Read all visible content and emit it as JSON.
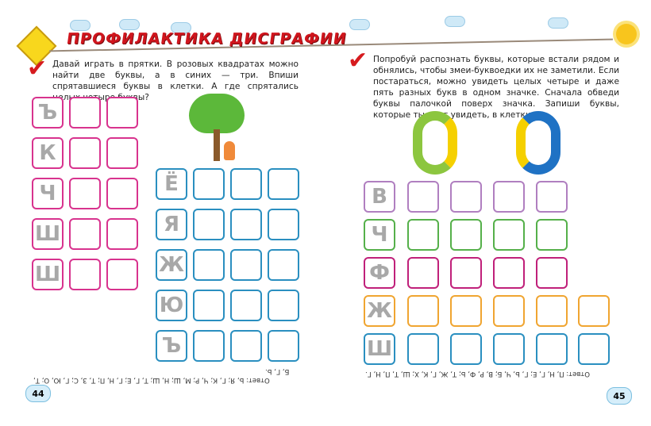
{
  "header": {
    "title": "ПРОФИЛАКТИКА ДИСГРАФИИ"
  },
  "left_page": {
    "task": "Давай играть в прятки. В розовых квадратах можно найти две буквы, а в синих — три. Впиши спрятавшиеся буквы в клетки. А где спрятались целых четыре буквы?",
    "pink_glyphs": [
      "Ъ",
      "К",
      "Ч",
      "Ш",
      "Ш"
    ],
    "blue_glyphs": [
      "Ё",
      "Я",
      "Ж",
      "Ю",
      "Ъ"
    ],
    "answer": "Ответ: Ь, Я; Г, К; Ч, Р; М, Ш; Н, Ш; Т, Г, Е; Г, Н, П; Т, З, С; Г, Ю, О; Т,",
    "answer_line2": "Б, Г, Ь.",
    "page_number": "44"
  },
  "right_page": {
    "task": "Попробуй распознать буквы, которые встали рядом и обнялись, чтобы змеи-буквоедки их не заметили. Если постараться, можно увидеть целых четыре и даже пять разных букв в одном значке. Сначала обведи буквы палочкой поверх значка. Запиши буквы, которые ты смог увидеть, в клетки.",
    "glyphs": [
      "В",
      "Ч",
      "Ф",
      "Ж",
      "Ш"
    ],
    "answer": "Ответ: П, Н, Г, Е; Г, Ь, Ч, Б; В, Р, Ф, Ь; Т, Ж, Г, К, Х; Ш, Т, П, Н, Г.",
    "page_number": "45"
  },
  "colors": {
    "pink": "#d8338e",
    "blue": "#2a8fc0",
    "purple": "#b07fc0",
    "green": "#55b04a",
    "magenta": "#c0207a",
    "orange": "#f0a531",
    "title": "#d0151d"
  }
}
